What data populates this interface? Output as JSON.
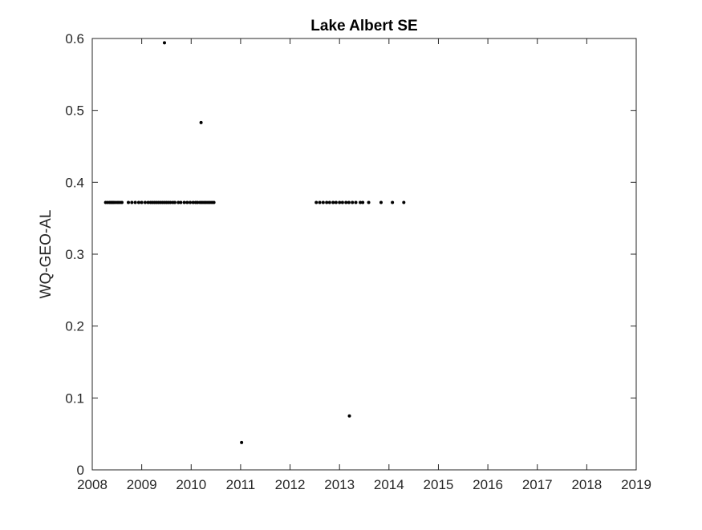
{
  "chart_data": {
    "type": "scatter",
    "title": "Lake Albert SE",
    "xlabel": "",
    "ylabel": "WQ-GEO-AL",
    "xlim": [
      2008,
      2019
    ],
    "ylim": [
      0,
      0.6
    ],
    "xticks": [
      "2008",
      "2009",
      "2010",
      "2011",
      "2012",
      "2013",
      "2014",
      "2015",
      "2016",
      "2017",
      "2018",
      "2019"
    ],
    "yticks": [
      "0",
      "0.1",
      "0.2",
      "0.3",
      "0.4",
      "0.5",
      "0.6"
    ],
    "grid": false,
    "legend": "none",
    "marker_color": "#000000",
    "series": [
      {
        "x": [
          2008.27,
          2008.31,
          2008.35,
          2008.38,
          2008.41,
          2008.44,
          2008.48,
          2008.52,
          2008.56,
          2008.6,
          2008.73,
          2008.8,
          2008.87,
          2008.94,
          2009.0,
          2009.07,
          2009.13,
          2009.18,
          2009.22,
          2009.26,
          2009.3,
          2009.34,
          2009.38,
          2009.42,
          2009.46,
          2009.5,
          2009.54,
          2009.58,
          2009.63,
          2009.67,
          2009.74,
          2009.79,
          2009.86,
          2009.92,
          2009.98,
          2010.04,
          2010.09,
          2010.13,
          2010.18,
          2010.22,
          2010.26,
          2010.3,
          2010.34,
          2010.38,
          2010.42,
          2010.46,
          2012.53,
          2012.6,
          2012.67,
          2012.74,
          2012.8,
          2012.87,
          2012.93,
          2013.0,
          2013.06,
          2013.13,
          2013.19,
          2013.26,
          2013.33,
          2013.42,
          2013.47,
          2013.59,
          2013.84,
          2014.07,
          2014.3,
          2009.46,
          2010.2,
          2011.02,
          2013.2
        ],
        "y": [
          0.372,
          0.372,
          0.372,
          0.372,
          0.372,
          0.372,
          0.372,
          0.372,
          0.372,
          0.372,
          0.372,
          0.372,
          0.372,
          0.372,
          0.372,
          0.372,
          0.372,
          0.372,
          0.372,
          0.372,
          0.372,
          0.372,
          0.372,
          0.372,
          0.372,
          0.372,
          0.372,
          0.372,
          0.372,
          0.372,
          0.372,
          0.372,
          0.372,
          0.372,
          0.372,
          0.372,
          0.372,
          0.372,
          0.372,
          0.372,
          0.372,
          0.372,
          0.372,
          0.372,
          0.372,
          0.372,
          0.372,
          0.372,
          0.372,
          0.372,
          0.372,
          0.372,
          0.372,
          0.372,
          0.372,
          0.372,
          0.372,
          0.372,
          0.372,
          0.372,
          0.372,
          0.372,
          0.372,
          0.372,
          0.372,
          0.594,
          0.483,
          0.038,
          0.075
        ]
      }
    ]
  }
}
